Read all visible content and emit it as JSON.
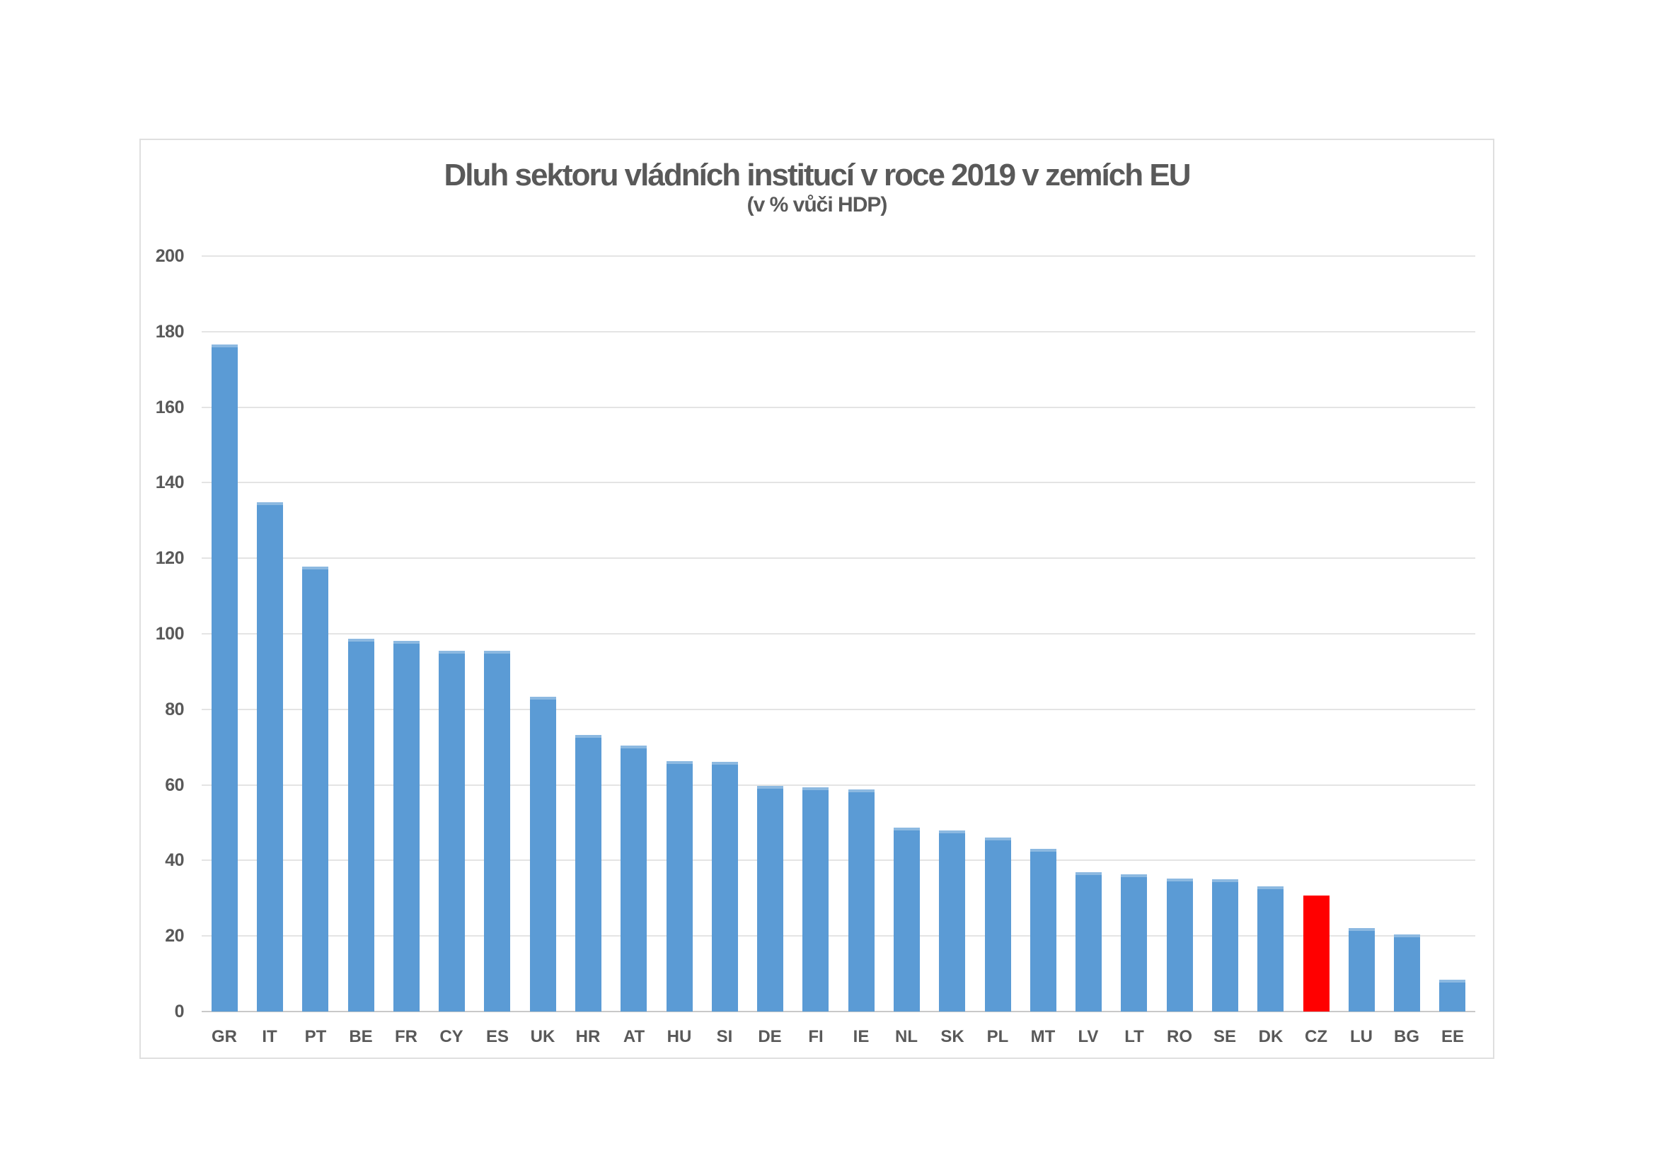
{
  "chart_data": {
    "type": "bar",
    "title": "Dluh sektoru vládních institucí v roce 2019 v zemích EU",
    "subtitle": "(v % vůči HDP)",
    "xlabel": "",
    "ylabel": "",
    "ylim": [
      0,
      200
    ],
    "ytick_step": 20,
    "yticks": [
      0,
      20,
      40,
      60,
      80,
      100,
      120,
      140,
      160,
      180,
      200
    ],
    "grid": true,
    "legend": "none",
    "categories": [
      "GR",
      "IT",
      "PT",
      "BE",
      "FR",
      "CY",
      "ES",
      "UK",
      "HR",
      "AT",
      "HU",
      "SI",
      "DE",
      "FI",
      "IE",
      "NL",
      "SK",
      "PL",
      "MT",
      "LV",
      "LT",
      "RO",
      "SE",
      "DK",
      "CZ",
      "LU",
      "BG",
      "EE"
    ],
    "values": [
      176.6,
      134.8,
      117.7,
      98.6,
      98.1,
      95.5,
      95.5,
      83.3,
      73.2,
      70.4,
      66.3,
      66.1,
      59.8,
      59.4,
      58.8,
      48.6,
      48.0,
      46.0,
      43.1,
      36.9,
      36.3,
      35.2,
      35.1,
      33.2,
      30.8,
      22.1,
      20.4,
      8.4
    ],
    "highlight_category": "CZ",
    "bar_color": "#5B9BD5",
    "highlight_color": "#FF0000",
    "text_color": "#595959",
    "gridline_color": "#E4E4E4",
    "frame_border_color": "#DFDFDF"
  }
}
